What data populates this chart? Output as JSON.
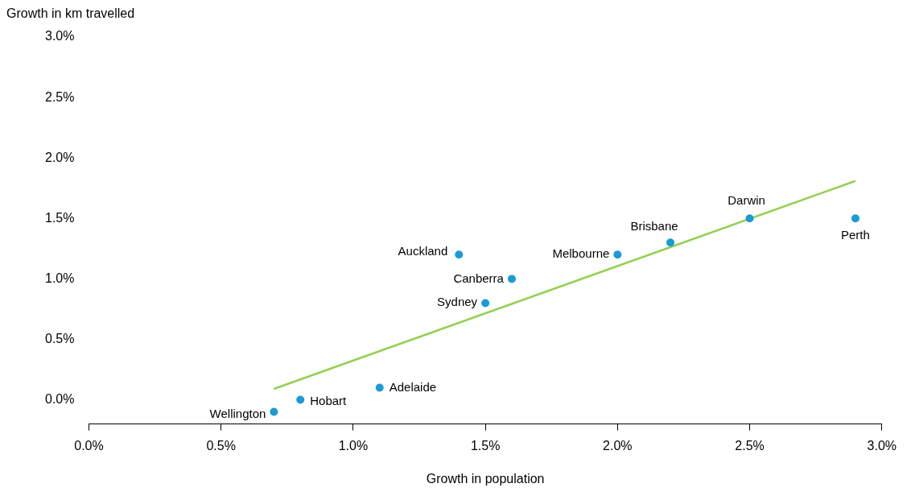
{
  "chart_data": {
    "type": "scatter",
    "xlabel": "Growth in population",
    "ylabel": "Growth in km travelled",
    "xlim": [
      0,
      3
    ],
    "ylim": [
      -0.2,
      3
    ],
    "xticks": [
      {
        "value": 0,
        "label": "0.0%"
      },
      {
        "value": 0.5,
        "label": "0.5%"
      },
      {
        "value": 1,
        "label": "1.0%"
      },
      {
        "value": 1.5,
        "label": "1.5%"
      },
      {
        "value": 2,
        "label": "2.0%"
      },
      {
        "value": 2.5,
        "label": "2.5%"
      },
      {
        "value": 3,
        "label": "3.0%"
      }
    ],
    "yticks": [
      {
        "value": 0,
        "label": "0.0%"
      },
      {
        "value": 0.5,
        "label": "0.5%"
      },
      {
        "value": 1,
        "label": "1.0%"
      },
      {
        "value": 1.5,
        "label": "1.5%"
      },
      {
        "value": 2,
        "label": "2.0%"
      },
      {
        "value": 2.5,
        "label": "2.5%"
      },
      {
        "value": 3,
        "label": "3.0%"
      }
    ],
    "series": [
      {
        "type": "scatter",
        "color": "#1a9ad6",
        "x": [
          0.7,
          0.8,
          1.1,
          1.5,
          1.6,
          1.4,
          2.0,
          2.2,
          2.5,
          2.9
        ],
        "values": [
          -0.1,
          0,
          0.1,
          0.8,
          1.0,
          1.2,
          1.2,
          1.3,
          1.5,
          1.5
        ],
        "marker": "circle"
      },
      {
        "type": "line",
        "color": "#92d050",
        "x": [
          0.7,
          2.9
        ],
        "values": [
          0.09,
          1.81
        ],
        "marker": "none",
        "line_style": "solid"
      }
    ],
    "annotations": [
      {
        "text": "Wellington",
        "x": 0.7,
        "y": -0.1
      },
      {
        "text": "Hobart",
        "x": 0.8,
        "y": 0
      },
      {
        "text": "Adelaide",
        "x": 1.1,
        "y": 0.1
      },
      {
        "text": "Sydney",
        "x": 1.5,
        "y": 0.8
      },
      {
        "text": "Canberra",
        "x": 1.6,
        "y": 1.0
      },
      {
        "text": "Auckland",
        "x": 1.4,
        "y": 1.2
      },
      {
        "text": "Melbourne",
        "x": 2.0,
        "y": 1.2
      },
      {
        "text": "Brisbane",
        "x": 2.2,
        "y": 1.3
      },
      {
        "text": "Darwin",
        "x": 2.5,
        "y": 1.5
      },
      {
        "text": "Perth",
        "x": 2.9,
        "y": 1.5
      }
    ],
    "grid": false,
    "legend": false
  }
}
